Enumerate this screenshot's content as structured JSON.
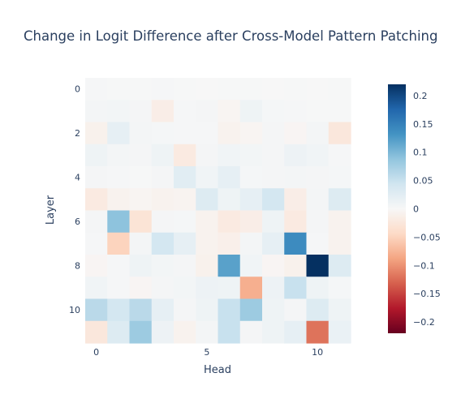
{
  "chart_data": {
    "type": "heatmap",
    "title": "Change in Logit Difference after Cross-Model Pattern Patching",
    "xlabel": "Head",
    "ylabel": "Layer",
    "x_tick_labels": [
      "0",
      "5",
      "10"
    ],
    "y_tick_labels": [
      "0",
      "2",
      "4",
      "6",
      "8",
      "10"
    ],
    "x_ticks": [
      0,
      5,
      10
    ],
    "y_ticks": [
      0,
      2,
      4,
      6,
      8,
      10
    ],
    "n_heads": 12,
    "n_layers": 12,
    "y_axis_reversed": true,
    "zlim": [
      -0.22,
      0.22
    ],
    "colorscale": "RdBu",
    "colorbar_tick_labels": [
      "0.2",
      "0.15",
      "0.1",
      "0.05",
      "0",
      "−0.05",
      "−0.1",
      "−0.15",
      "−0.2"
    ],
    "colorbar_ticks": [
      0.2,
      0.15,
      0.1,
      0.05,
      0,
      -0.05,
      -0.1,
      -0.15,
      -0.2
    ],
    "values": [
      [
        0.002,
        0.001,
        0.001,
        0.002,
        0.001,
        0.0,
        0.001,
        0.001,
        0.0,
        0.001,
        0.0,
        0.001
      ],
      [
        0.005,
        0.006,
        0.004,
        -0.015,
        0.002,
        0.004,
        -0.005,
        0.01,
        0.003,
        0.002,
        0.001,
        0.001
      ],
      [
        -0.01,
        0.02,
        0.005,
        0.003,
        0.002,
        0.002,
        -0.008,
        -0.005,
        0.004,
        -0.004,
        0.005,
        -0.025
      ],
      [
        0.01,
        0.005,
        0.004,
        0.01,
        -0.02,
        0.004,
        0.008,
        0.006,
        0.004,
        0.012,
        0.008,
        0.002
      ],
      [
        0.004,
        0.002,
        0.001,
        0.004,
        0.025,
        0.008,
        0.02,
        0.003,
        0.004,
        0.005,
        0.004,
        0.003
      ],
      [
        -0.02,
        -0.008,
        -0.005,
        -0.008,
        -0.006,
        0.03,
        0.01,
        0.02,
        0.04,
        -0.015,
        0.005,
        0.03
      ],
      [
        0.004,
        0.09,
        -0.03,
        0.004,
        0.003,
        -0.008,
        -0.02,
        -0.015,
        0.01,
        -0.02,
        0.004,
        -0.008
      ],
      [
        0.002,
        -0.05,
        0.005,
        0.04,
        0.02,
        -0.008,
        -0.012,
        0.005,
        0.02,
        0.14,
        0.002,
        -0.008
      ],
      [
        -0.004,
        0.002,
        0.01,
        0.006,
        0.004,
        -0.01,
        0.12,
        0.008,
        -0.004,
        -0.01,
        0.22,
        0.03
      ],
      [
        0.008,
        0.002,
        -0.004,
        0.004,
        0.006,
        0.012,
        0.01,
        -0.08,
        0.012,
        0.05,
        0.01,
        0.003
      ],
      [
        0.06,
        0.04,
        0.06,
        0.02,
        0.004,
        0.01,
        0.05,
        0.08,
        0.01,
        0.004,
        0.03,
        0.01
      ],
      [
        -0.025,
        0.03,
        0.08,
        0.012,
        -0.008,
        0.005,
        0.05,
        0.004,
        0.01,
        0.02,
        -0.12,
        0.015
      ]
    ]
  }
}
